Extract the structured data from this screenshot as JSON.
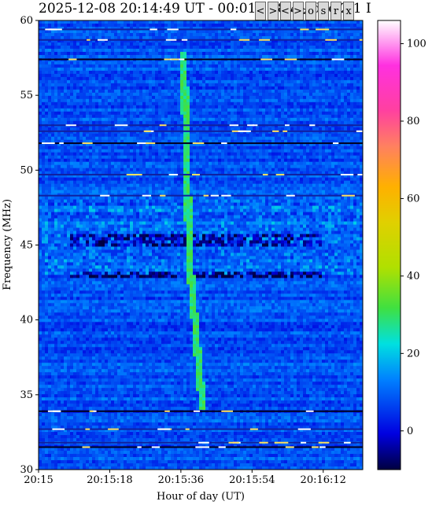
{
  "header": {
    "title": "2025-12-08 20:14:49 UT - 00:01 ; 28-4 , dec 2/1 I",
    "buttons": [
      "<",
      ">",
      "<<",
      ">>",
      "o",
      "s",
      "r",
      "x"
    ]
  },
  "colorbar": {
    "ticks": [
      0,
      20,
      40,
      60,
      80,
      100
    ],
    "range": [
      -10,
      106
    ]
  },
  "chart_data": {
    "type": "heatmap",
    "title": "",
    "xlabel": "Hour of day (UT)",
    "ylabel": "Frequency (MHz)",
    "x_ticks": [
      "20:15",
      "20:15:18",
      "20:15:36",
      "20:15:54",
      "20:16:12"
    ],
    "x_range_seconds": [
      0,
      82
    ],
    "ylim": [
      30,
      60
    ],
    "y_ticks": [
      30,
      35,
      40,
      45,
      50,
      55,
      60
    ],
    "background_value": 8,
    "burst_track": {
      "description_points": [
        [
          36.5,
          58
        ],
        [
          37.0,
          55
        ],
        [
          37.5,
          50
        ],
        [
          38.0,
          46
        ],
        [
          38.5,
          43
        ],
        [
          39.5,
          40
        ],
        [
          40.5,
          37
        ],
        [
          41.5,
          34
        ]
      ],
      "value": 25
    },
    "rfi_lines_mhz": [
      33.9,
      32.7,
      31.8,
      31.5,
      48.3,
      49.7,
      51.8,
      52.6,
      53.0,
      57.4,
      58.7,
      59.4
    ],
    "absorption_bands_mhz": [
      [
        45.0,
        45.8
      ],
      [
        42.8,
        43.3
      ]
    ]
  }
}
